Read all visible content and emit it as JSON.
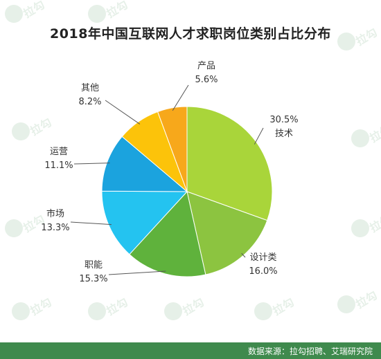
{
  "title": "2018年中国互联网人才求职岗位类别占比分布",
  "source": "数据来源：拉勾招聘、艾瑞研究院",
  "watermark_text": "拉勾",
  "chart_data": {
    "type": "pie",
    "title": "2018年中国互联网人才求职岗位类别占比分布",
    "slices": [
      {
        "label": "技术",
        "value": 30.5,
        "value_text": "30.5%",
        "color": "#a9d53a"
      },
      {
        "label": "设计类",
        "value": 16.0,
        "value_text": "16.0%",
        "color": "#8cc440"
      },
      {
        "label": "职能",
        "value": 15.3,
        "value_text": "15.3%",
        "color": "#5fb23c"
      },
      {
        "label": "市场",
        "value": 13.3,
        "value_text": "13.3%",
        "color": "#24c3f0"
      },
      {
        "label": "运营",
        "value": 11.1,
        "value_text": "11.1%",
        "color": "#1ba3de"
      },
      {
        "label": "其他",
        "value": 8.2,
        "value_text": "8.2%",
        "color": "#fcc30a"
      },
      {
        "label": "产品",
        "value": 5.6,
        "value_text": "5.6%",
        "color": "#f7a81b"
      }
    ],
    "start_angle_deg": 0,
    "direction": "clockwise",
    "legend": "none"
  }
}
